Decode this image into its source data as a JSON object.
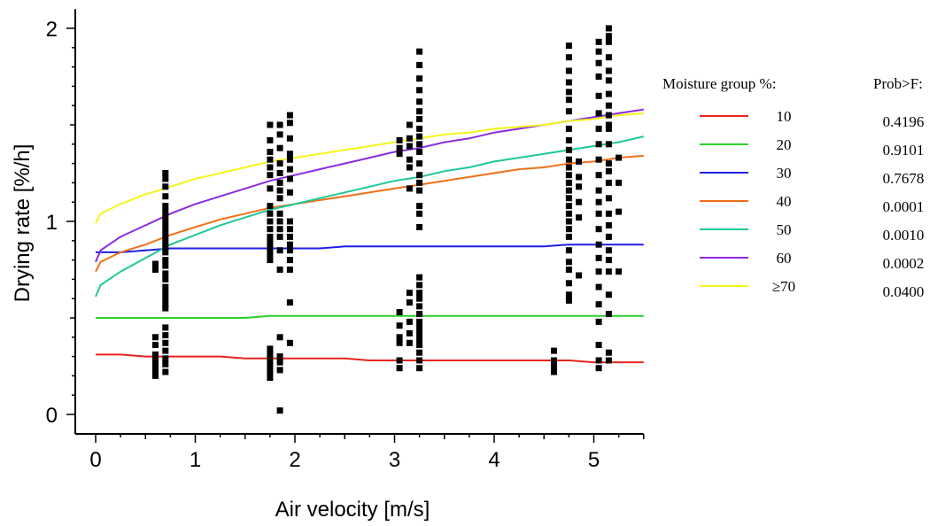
{
  "chart_data": {
    "type": "scatter",
    "xlabel": "Air velocity [m/s]",
    "ylabel": "Drying rate [%/h]",
    "xlim": [
      -0.2,
      5.5
    ],
    "ylim": [
      -0.12,
      2.1
    ],
    "x_ticks": [
      0,
      1,
      2,
      3,
      4,
      5
    ],
    "y_ticks": [
      0,
      1,
      2
    ],
    "legend_title": "Moisture group %:",
    "prob_title": "Prob>F:",
    "series": [
      {
        "name": "10",
        "prob": "0.4196",
        "color": "#e8231b",
        "x": [
          0,
          0.25,
          0.5,
          0.75,
          1.0,
          1.25,
          1.5,
          1.75,
          2.0,
          2.25,
          2.5,
          2.75,
          3.0,
          3.25,
          3.5,
          3.75,
          4.0,
          4.25,
          4.5,
          4.75,
          5.0,
          5.25,
          5.5
        ],
        "y": [
          0.31,
          0.31,
          0.3,
          0.3,
          0.3,
          0.3,
          0.29,
          0.29,
          0.29,
          0.29,
          0.29,
          0.28,
          0.28,
          0.28,
          0.28,
          0.28,
          0.28,
          0.28,
          0.28,
          0.28,
          0.27,
          0.27,
          0.27
        ]
      },
      {
        "name": "20",
        "prob": "0.9101",
        "color": "#2bd12b",
        "x": [
          0,
          0.5,
          1.0,
          1.5,
          1.75,
          2.0,
          2.5,
          3.0,
          3.5,
          4.0,
          4.5,
          5.0,
          5.5
        ],
        "y": [
          0.5,
          0.5,
          0.5,
          0.5,
          0.51,
          0.51,
          0.51,
          0.51,
          0.51,
          0.51,
          0.51,
          0.51,
          0.51
        ]
      },
      {
        "name": "30",
        "prob": "0.7678",
        "color": "#1f1fe6",
        "x": [
          0,
          0.25,
          0.5,
          0.75,
          1.0,
          1.5,
          2.0,
          2.25,
          2.5,
          3.0,
          3.5,
          4.0,
          4.5,
          4.75,
          5.0,
          5.5
        ],
        "y": [
          0.84,
          0.84,
          0.85,
          0.86,
          0.86,
          0.86,
          0.86,
          0.86,
          0.87,
          0.87,
          0.87,
          0.87,
          0.87,
          0.88,
          0.88,
          0.88
        ]
      },
      {
        "name": "40",
        "prob": "0.0001",
        "color": "#f0701a",
        "x": [
          0,
          0.05,
          0.25,
          0.5,
          0.75,
          1.0,
          1.25,
          1.5,
          1.75,
          2.0,
          2.25,
          2.5,
          2.75,
          3.0,
          3.25,
          3.5,
          3.75,
          4.0,
          4.25,
          4.5,
          4.75,
          5.0,
          5.25,
          5.5
        ],
        "y": [
          0.74,
          0.79,
          0.84,
          0.88,
          0.93,
          0.97,
          1.01,
          1.04,
          1.07,
          1.09,
          1.11,
          1.13,
          1.15,
          1.17,
          1.19,
          1.21,
          1.23,
          1.25,
          1.27,
          1.28,
          1.3,
          1.31,
          1.33,
          1.34
        ]
      },
      {
        "name": "50",
        "prob": "0.0010",
        "color": "#1ec99a",
        "x": [
          0,
          0.05,
          0.25,
          0.5,
          0.75,
          1.0,
          1.25,
          1.5,
          1.75,
          2.0,
          2.25,
          2.5,
          2.75,
          3.0,
          3.25,
          3.5,
          3.75,
          4.0,
          4.25,
          4.5,
          4.75,
          5.0,
          5.25,
          5.5
        ],
        "y": [
          0.61,
          0.67,
          0.74,
          0.81,
          0.88,
          0.93,
          0.98,
          1.02,
          1.06,
          1.09,
          1.12,
          1.15,
          1.18,
          1.21,
          1.23,
          1.26,
          1.28,
          1.31,
          1.33,
          1.35,
          1.37,
          1.39,
          1.41,
          1.44
        ]
      },
      {
        "name": "60",
        "prob": "0.0002",
        "color": "#8a2be2",
        "x": [
          0,
          0.05,
          0.25,
          0.5,
          0.75,
          1.0,
          1.25,
          1.5,
          1.75,
          2.0,
          2.25,
          2.5,
          2.75,
          3.0,
          3.25,
          3.5,
          3.75,
          4.0,
          4.25,
          4.5,
          4.75,
          5.0,
          5.25,
          5.5
        ],
        "y": [
          0.79,
          0.85,
          0.92,
          0.98,
          1.04,
          1.09,
          1.13,
          1.17,
          1.21,
          1.24,
          1.27,
          1.3,
          1.33,
          1.36,
          1.38,
          1.41,
          1.43,
          1.46,
          1.48,
          1.5,
          1.52,
          1.54,
          1.56,
          1.58
        ]
      },
      {
        "name": "≥70",
        "prob": "0.0400",
        "color": "#f5f51c",
        "x": [
          0,
          0.05,
          0.25,
          0.5,
          0.75,
          1.0,
          1.25,
          1.5,
          1.75,
          2.0,
          2.25,
          2.5,
          2.75,
          3.0,
          3.25,
          3.5,
          3.75,
          4.0,
          4.25,
          4.5,
          4.75,
          5.0,
          5.25,
          5.5
        ],
        "y": [
          0.99,
          1.04,
          1.09,
          1.14,
          1.18,
          1.22,
          1.25,
          1.28,
          1.31,
          1.33,
          1.35,
          1.37,
          1.39,
          1.41,
          1.43,
          1.45,
          1.46,
          1.48,
          1.49,
          1.5,
          1.52,
          1.53,
          1.55,
          1.56
        ]
      }
    ],
    "points": [
      [
        0.6,
        0.2
      ],
      [
        0.6,
        0.22
      ],
      [
        0.6,
        0.25
      ],
      [
        0.6,
        0.28
      ],
      [
        0.6,
        0.31
      ],
      [
        0.6,
        0.36
      ],
      [
        0.6,
        0.4
      ],
      [
        0.6,
        0.75
      ],
      [
        0.6,
        0.78
      ],
      [
        0.7,
        0.22
      ],
      [
        0.7,
        0.26
      ],
      [
        0.7,
        0.29
      ],
      [
        0.7,
        0.33
      ],
      [
        0.7,
        0.37
      ],
      [
        0.7,
        0.41
      ],
      [
        0.7,
        0.45
      ],
      [
        0.7,
        0.55
      ],
      [
        0.7,
        0.57
      ],
      [
        0.7,
        0.6
      ],
      [
        0.7,
        0.63
      ],
      [
        0.7,
        0.66
      ],
      [
        0.7,
        0.7
      ],
      [
        0.7,
        0.73
      ],
      [
        0.7,
        0.77
      ],
      [
        0.7,
        0.8
      ],
      [
        0.7,
        0.84
      ],
      [
        0.7,
        0.87
      ],
      [
        0.7,
        0.9
      ],
      [
        0.7,
        0.93
      ],
      [
        0.7,
        0.96
      ],
      [
        0.7,
        0.99
      ],
      [
        0.7,
        1.02
      ],
      [
        0.7,
        1.05
      ],
      [
        0.7,
        1.08
      ],
      [
        0.7,
        1.13
      ],
      [
        0.7,
        1.18
      ],
      [
        0.7,
        1.22
      ],
      [
        0.7,
        1.25
      ],
      [
        1.75,
        0.19
      ],
      [
        1.75,
        0.22
      ],
      [
        1.75,
        0.25
      ],
      [
        1.75,
        0.28
      ],
      [
        1.75,
        0.31
      ],
      [
        1.75,
        0.34
      ],
      [
        1.75,
        0.8
      ],
      [
        1.75,
        0.83
      ],
      [
        1.75,
        0.86
      ],
      [
        1.75,
        0.89
      ],
      [
        1.75,
        0.92
      ],
      [
        1.75,
        0.96
      ],
      [
        1.75,
        1.0
      ],
      [
        1.75,
        1.04
      ],
      [
        1.75,
        1.08
      ],
      [
        1.75,
        1.17
      ],
      [
        1.75,
        1.24
      ],
      [
        1.75,
        1.28
      ],
      [
        1.75,
        1.32
      ],
      [
        1.75,
        1.36
      ],
      [
        1.75,
        1.42
      ],
      [
        1.75,
        1.5
      ],
      [
        1.85,
        0.23
      ],
      [
        1.85,
        0.27
      ],
      [
        1.85,
        0.3
      ],
      [
        1.85,
        0.4
      ],
      [
        1.85,
        0.75
      ],
      [
        1.85,
        0.85
      ],
      [
        1.85,
        0.92
      ],
      [
        1.85,
        0.96
      ],
      [
        1.85,
        1.0
      ],
      [
        1.85,
        1.04
      ],
      [
        1.85,
        1.12
      ],
      [
        1.85,
        1.16
      ],
      [
        1.85,
        1.2
      ],
      [
        1.85,
        1.25
      ],
      [
        1.85,
        1.3
      ],
      [
        1.85,
        1.38
      ],
      [
        1.85,
        1.45
      ],
      [
        1.85,
        1.5
      ],
      [
        1.85,
        0.02
      ],
      [
        1.95,
        0.37
      ],
      [
        1.95,
        0.58
      ],
      [
        1.95,
        0.75
      ],
      [
        1.95,
        0.8
      ],
      [
        1.95,
        0.85
      ],
      [
        1.95,
        0.88
      ],
      [
        1.95,
        0.92
      ],
      [
        1.95,
        0.96
      ],
      [
        1.95,
        1.0
      ],
      [
        1.95,
        1.15
      ],
      [
        1.95,
        1.22
      ],
      [
        1.95,
        1.27
      ],
      [
        1.95,
        1.32
      ],
      [
        1.95,
        1.35
      ],
      [
        1.95,
        1.43
      ],
      [
        1.95,
        1.51
      ],
      [
        1.95,
        1.55
      ],
      [
        3.05,
        0.24
      ],
      [
        3.05,
        0.28
      ],
      [
        3.05,
        0.37
      ],
      [
        3.05,
        0.4
      ],
      [
        3.05,
        0.46
      ],
      [
        3.05,
        0.53
      ],
      [
        3.05,
        1.35
      ],
      [
        3.05,
        1.38
      ],
      [
        3.05,
        1.42
      ],
      [
        3.15,
        0.37
      ],
      [
        3.15,
        0.42
      ],
      [
        3.15,
        0.48
      ],
      [
        3.15,
        0.58
      ],
      [
        3.15,
        0.63
      ],
      [
        3.15,
        1.17
      ],
      [
        3.15,
        1.28
      ],
      [
        3.15,
        1.32
      ],
      [
        3.15,
        1.39
      ],
      [
        3.15,
        1.43
      ],
      [
        3.15,
        1.5
      ],
      [
        3.25,
        0.24
      ],
      [
        3.25,
        0.28
      ],
      [
        3.25,
        0.32
      ],
      [
        3.25,
        0.36
      ],
      [
        3.25,
        0.39
      ],
      [
        3.25,
        0.42
      ],
      [
        3.25,
        0.45
      ],
      [
        3.25,
        0.48
      ],
      [
        3.25,
        0.52
      ],
      [
        3.25,
        0.56
      ],
      [
        3.25,
        0.6
      ],
      [
        3.25,
        0.63
      ],
      [
        3.25,
        0.67
      ],
      [
        3.25,
        0.71
      ],
      [
        3.25,
        0.97
      ],
      [
        3.25,
        1.04
      ],
      [
        3.25,
        1.08
      ],
      [
        3.25,
        1.16
      ],
      [
        3.25,
        1.2
      ],
      [
        3.25,
        1.24
      ],
      [
        3.25,
        1.3
      ],
      [
        3.25,
        1.36
      ],
      [
        3.25,
        1.4
      ],
      [
        3.25,
        1.44
      ],
      [
        3.25,
        1.48
      ],
      [
        3.25,
        1.53
      ],
      [
        3.25,
        1.57
      ],
      [
        3.25,
        1.62
      ],
      [
        3.25,
        1.68
      ],
      [
        3.25,
        1.74
      ],
      [
        3.25,
        1.81
      ],
      [
        3.25,
        1.88
      ],
      [
        4.6,
        0.22
      ],
      [
        4.6,
        0.25
      ],
      [
        4.6,
        0.28
      ],
      [
        4.6,
        0.33
      ],
      [
        4.75,
        0.59
      ],
      [
        4.75,
        0.62
      ],
      [
        4.75,
        0.68
      ],
      [
        4.75,
        0.75
      ],
      [
        4.75,
        0.79
      ],
      [
        4.75,
        0.85
      ],
      [
        4.75,
        0.92
      ],
      [
        4.75,
        0.96
      ],
      [
        4.75,
        1.0
      ],
      [
        4.75,
        1.04
      ],
      [
        4.75,
        1.08
      ],
      [
        4.75,
        1.12
      ],
      [
        4.75,
        1.16
      ],
      [
        4.75,
        1.2
      ],
      [
        4.75,
        1.24
      ],
      [
        4.75,
        1.28
      ],
      [
        4.75,
        1.32
      ],
      [
        4.75,
        1.37
      ],
      [
        4.75,
        1.42
      ],
      [
        4.75,
        1.48
      ],
      [
        4.75,
        1.57
      ],
      [
        4.75,
        1.63
      ],
      [
        4.75,
        1.67
      ],
      [
        4.75,
        1.72
      ],
      [
        4.75,
        1.78
      ],
      [
        4.75,
        1.85
      ],
      [
        4.75,
        1.91
      ],
      [
        4.85,
        0.72
      ],
      [
        4.85,
        1.02
      ],
      [
        4.85,
        1.1
      ],
      [
        4.85,
        1.18
      ],
      [
        4.85,
        1.23
      ],
      [
        4.85,
        1.31
      ],
      [
        5.05,
        0.24
      ],
      [
        5.05,
        0.28
      ],
      [
        5.05,
        0.36
      ],
      [
        5.05,
        0.48
      ],
      [
        5.05,
        0.57
      ],
      [
        5.05,
        0.66
      ],
      [
        5.05,
        0.74
      ],
      [
        5.05,
        0.81
      ],
      [
        5.05,
        0.88
      ],
      [
        5.05,
        0.96
      ],
      [
        5.05,
        1.04
      ],
      [
        5.05,
        1.1
      ],
      [
        5.05,
        1.16
      ],
      [
        5.05,
        1.24
      ],
      [
        5.05,
        1.32
      ],
      [
        5.05,
        1.4
      ],
      [
        5.05,
        1.48
      ],
      [
        5.05,
        1.56
      ],
      [
        5.05,
        1.65
      ],
      [
        5.05,
        1.75
      ],
      [
        5.05,
        1.82
      ],
      [
        5.05,
        1.88
      ],
      [
        5.05,
        1.93
      ],
      [
        5.15,
        0.28
      ],
      [
        5.15,
        0.32
      ],
      [
        5.15,
        0.52
      ],
      [
        5.15,
        0.62
      ],
      [
        5.15,
        0.74
      ],
      [
        5.15,
        0.8
      ],
      [
        5.15,
        0.85
      ],
      [
        5.15,
        0.92
      ],
      [
        5.15,
        0.98
      ],
      [
        5.15,
        1.04
      ],
      [
        5.15,
        1.12
      ],
      [
        5.15,
        1.2
      ],
      [
        5.15,
        1.26
      ],
      [
        5.15,
        1.3
      ],
      [
        5.15,
        1.4
      ],
      [
        5.15,
        1.48
      ],
      [
        5.15,
        1.5
      ],
      [
        5.15,
        1.55
      ],
      [
        5.15,
        1.6
      ],
      [
        5.15,
        1.66
      ],
      [
        5.15,
        1.73
      ],
      [
        5.15,
        1.78
      ],
      [
        5.15,
        1.85
      ],
      [
        5.15,
        1.93
      ],
      [
        5.15,
        1.96
      ],
      [
        5.15,
        2.0
      ],
      [
        5.25,
        0.74
      ],
      [
        5.25,
        1.05
      ],
      [
        5.25,
        1.2
      ],
      [
        5.25,
        1.33
      ]
    ]
  }
}
